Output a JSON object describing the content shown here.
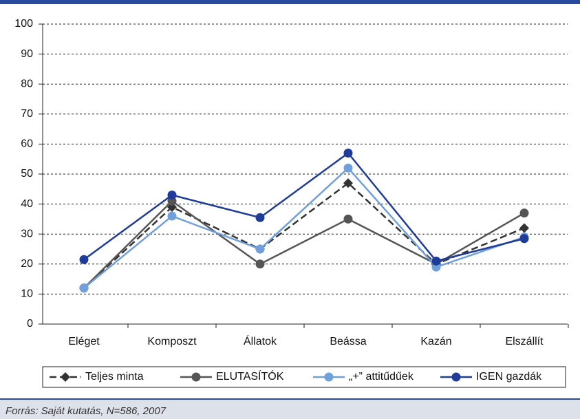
{
  "chart_data": {
    "type": "line",
    "categories": [
      "Eléget",
      "Komposzt",
      "Állatok",
      "Beássa",
      "Kazán",
      "Elszállít"
    ],
    "series": [
      {
        "name": "Teljes minta",
        "color": "#333333",
        "dash": true,
        "marker": "diamond",
        "values": [
          12,
          39,
          25,
          47,
          20,
          32
        ]
      },
      {
        "name": "ELUTASÍTÓK",
        "color": "#555555",
        "dash": false,
        "marker": "circle",
        "values": [
          12,
          41,
          20,
          35,
          20,
          37
        ]
      },
      {
        "name": "„+” attitűdűek",
        "color": "#6fa0dc",
        "dash": false,
        "marker": "circle",
        "values": [
          12,
          36,
          25,
          52,
          19,
          29
        ]
      },
      {
        "name": "IGEN gazdák",
        "color": "#1f3c9a",
        "dash": false,
        "marker": "circle",
        "values": [
          21.5,
          43,
          35.5,
          57,
          21,
          28.5
        ]
      }
    ],
    "ylim": [
      0,
      100
    ],
    "yticks": [
      0,
      10,
      20,
      30,
      40,
      50,
      60,
      70,
      80,
      90,
      100
    ],
    "grid": true,
    "legend": "bottom"
  },
  "footer": "Forrás: Saját kutatás, N=586, 2007"
}
